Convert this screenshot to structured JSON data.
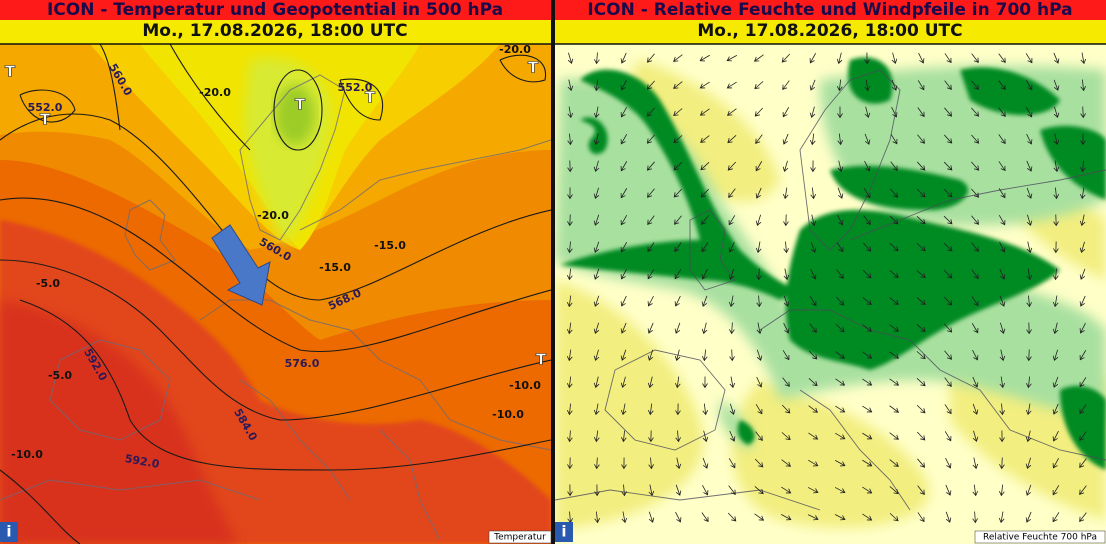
{
  "panels": [
    {
      "title": "ICON - Temperatur und Geopotential in 500 hPa",
      "date": "Mo., 17.08.2026, 18:00 UTC",
      "legend": "Temperatur",
      "info_icon": "i",
      "contour_labels": [
        "560.0",
        "552.0",
        "-20.0",
        "552.0",
        "-20.0",
        "-20.0",
        "560.0",
        "-15.0",
        "-15.0",
        "568.0",
        "576.0",
        "-5.0",
        "-5.0",
        "592.0",
        "584.0",
        "-10.0",
        "-10.0",
        "-10.0",
        "592.0"
      ],
      "pressure_marks": [
        "T",
        "T",
        "T",
        "T",
        "T",
        "T"
      ]
    },
    {
      "title": "ICON - Relative Feuchte und Windpfeile in 700 hPa",
      "date": "Mo., 17.08.2026, 18:00 UTC",
      "legend": "Relative Feuchte 700 hPa",
      "info_icon": "i"
    }
  ]
}
